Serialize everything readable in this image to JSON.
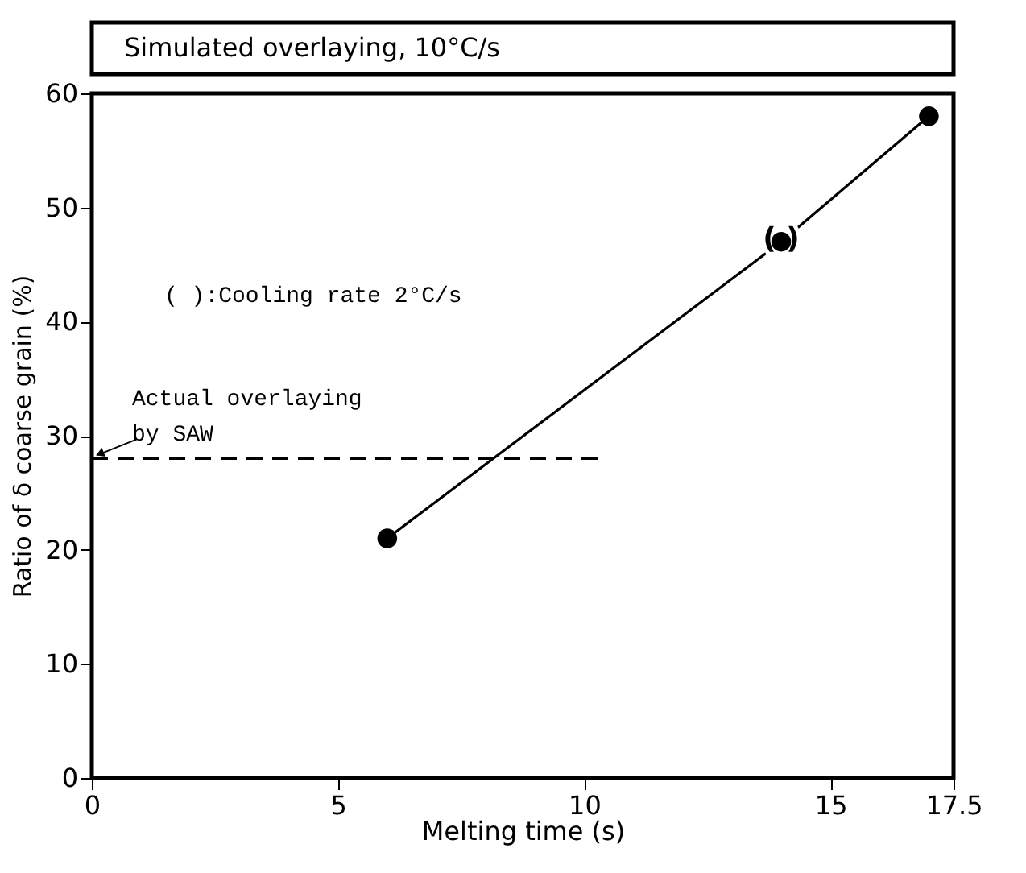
{
  "chart_data": {
    "type": "line",
    "title": "Simulated overlaying,   10°C/s",
    "xlabel": "Melting time  (s)",
    "ylabel": "Ratio of δ coarse grain (%)",
    "series": [
      {
        "x": [
          6,
          14,
          17
        ],
        "values": [
          21,
          47,
          58
        ],
        "color": "#000000",
        "marker": "circle",
        "line_style": "solid"
      },
      {
        "x": [
          0,
          10.3
        ],
        "values": [
          28,
          28
        ],
        "color": "#000000",
        "marker": "none",
        "line_style": "dashed"
      }
    ],
    "annotations": [
      {
        "text": "( )",
        "x": 14,
        "y": 47
      },
      "( ):Cooling rate 2°C/s",
      {
        "text": "Actual overlaying\nby SAW",
        "x": 0,
        "y": 28
      }
    ],
    "xlim": [
      0,
      17.5
    ],
    "xticks": [
      0,
      5,
      10,
      15,
      {
        "value": 17.5,
        "label": "17.5"
      }
    ],
    "ylim": [
      0,
      60
    ],
    "yticks": [
      0,
      10,
      20,
      30,
      40,
      50,
      60
    ],
    "grid": false
  }
}
